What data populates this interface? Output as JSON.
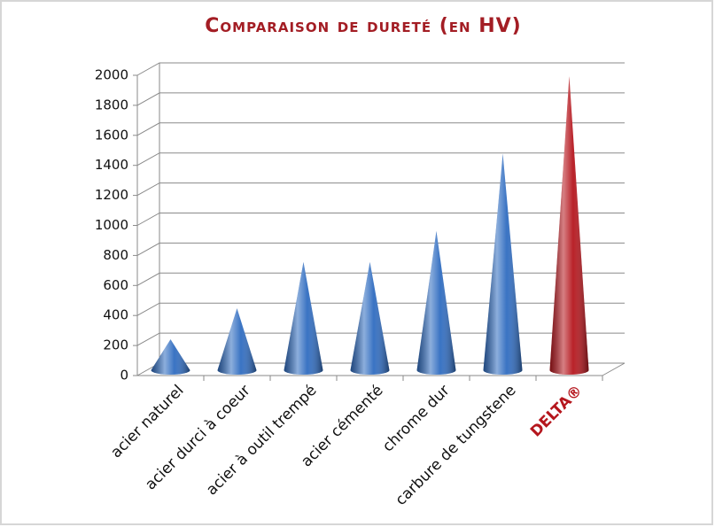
{
  "chart_data": {
    "type": "cone",
    "title": "Comparaison de dureté (en HV)",
    "categories": [
      "acier naturel",
      "acier durci à coeur",
      "acier à outil trempé",
      "acier cémenté",
      "chrome dur",
      "carbure de tungstene",
      "DELTA®"
    ],
    "values": [
      200,
      400,
      700,
      700,
      900,
      1400,
      1900
    ],
    "colors": [
      "#2f6cc0",
      "#2f6cc0",
      "#2f6cc0",
      "#2f6cc0",
      "#2f6cc0",
      "#2f6cc0",
      "#b5161d"
    ],
    "label_colors": [
      "#111111",
      "#111111",
      "#111111",
      "#111111",
      "#111111",
      "#111111",
      "#b5161d"
    ],
    "ylim": [
      0,
      2000
    ],
    "yticks": [
      0,
      200,
      400,
      600,
      800,
      1000,
      1200,
      1400,
      1600,
      1800,
      2000
    ],
    "grid": true
  }
}
